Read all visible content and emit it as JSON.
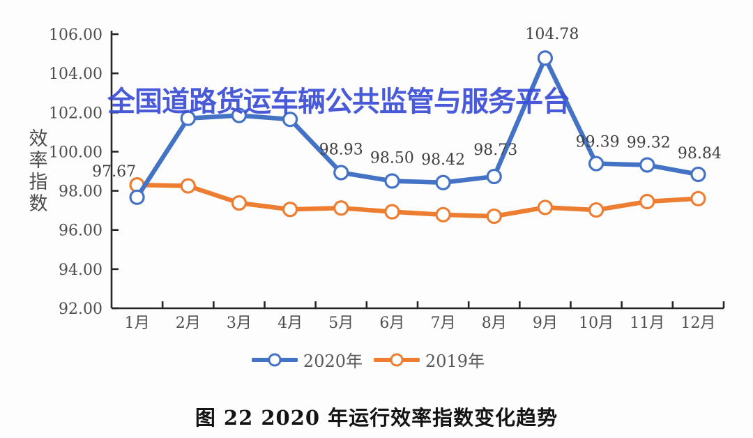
{
  "watermark": {
    "text": "全国道路货运车辆公共监管与服务平台",
    "color": "#3b4ed6"
  },
  "caption": {
    "text": "图 22 2020 年运行效率指数变化趋势"
  },
  "chart_data": {
    "type": "line",
    "title": "图 22 2020 年运行效率指数变化趋势",
    "ylabel": "效率指数",
    "xlabel": "",
    "categories": [
      "1月",
      "2月",
      "3月",
      "4月",
      "5月",
      "6月",
      "7月",
      "8月",
      "9月",
      "10月",
      "11月",
      "12月"
    ],
    "ylim": [
      92,
      106
    ],
    "ytick_step": 2,
    "ytick_labels": [
      "92.00",
      "94.00",
      "96.00",
      "98.00",
      "100.00",
      "102.00",
      "104.00",
      "106.00"
    ],
    "grid": false,
    "legend_position": "bottom",
    "axis_color": "#262626",
    "text_color": "#4d4d4d",
    "series": [
      {
        "name": "2020年",
        "color": "#4472C4",
        "values": [
          97.67,
          101.7,
          101.85,
          101.65,
          98.93,
          98.5,
          98.42,
          98.73,
          104.78,
          99.39,
          99.32,
          98.84
        ],
        "data_labels": [
          {
            "index": 0,
            "text": "97.67",
            "dx": -33,
            "dy": -30
          },
          {
            "index": 4,
            "text": "98.93",
            "dx": 0,
            "dy": -26
          },
          {
            "index": 5,
            "text": "98.50",
            "dx": 0,
            "dy": -26
          },
          {
            "index": 6,
            "text": "98.42",
            "dx": 0,
            "dy": -26
          },
          {
            "index": 7,
            "text": "98.73",
            "dx": 2,
            "dy": -31
          },
          {
            "index": 8,
            "text": "104.78",
            "dx": 10,
            "dy": -27
          },
          {
            "index": 9,
            "text": "99.39",
            "dx": 2,
            "dy": -24
          },
          {
            "index": 10,
            "text": "99.32",
            "dx": 2,
            "dy": -25
          },
          {
            "index": 11,
            "text": "98.84",
            "dx": 2,
            "dy": -23
          }
        ]
      },
      {
        "name": "2019年",
        "color": "#ED7D31",
        "values": [
          98.3,
          98.25,
          97.38,
          97.05,
          97.12,
          96.93,
          96.78,
          96.7,
          97.15,
          97.02,
          97.45,
          97.6
        ],
        "data_labels": []
      }
    ]
  }
}
